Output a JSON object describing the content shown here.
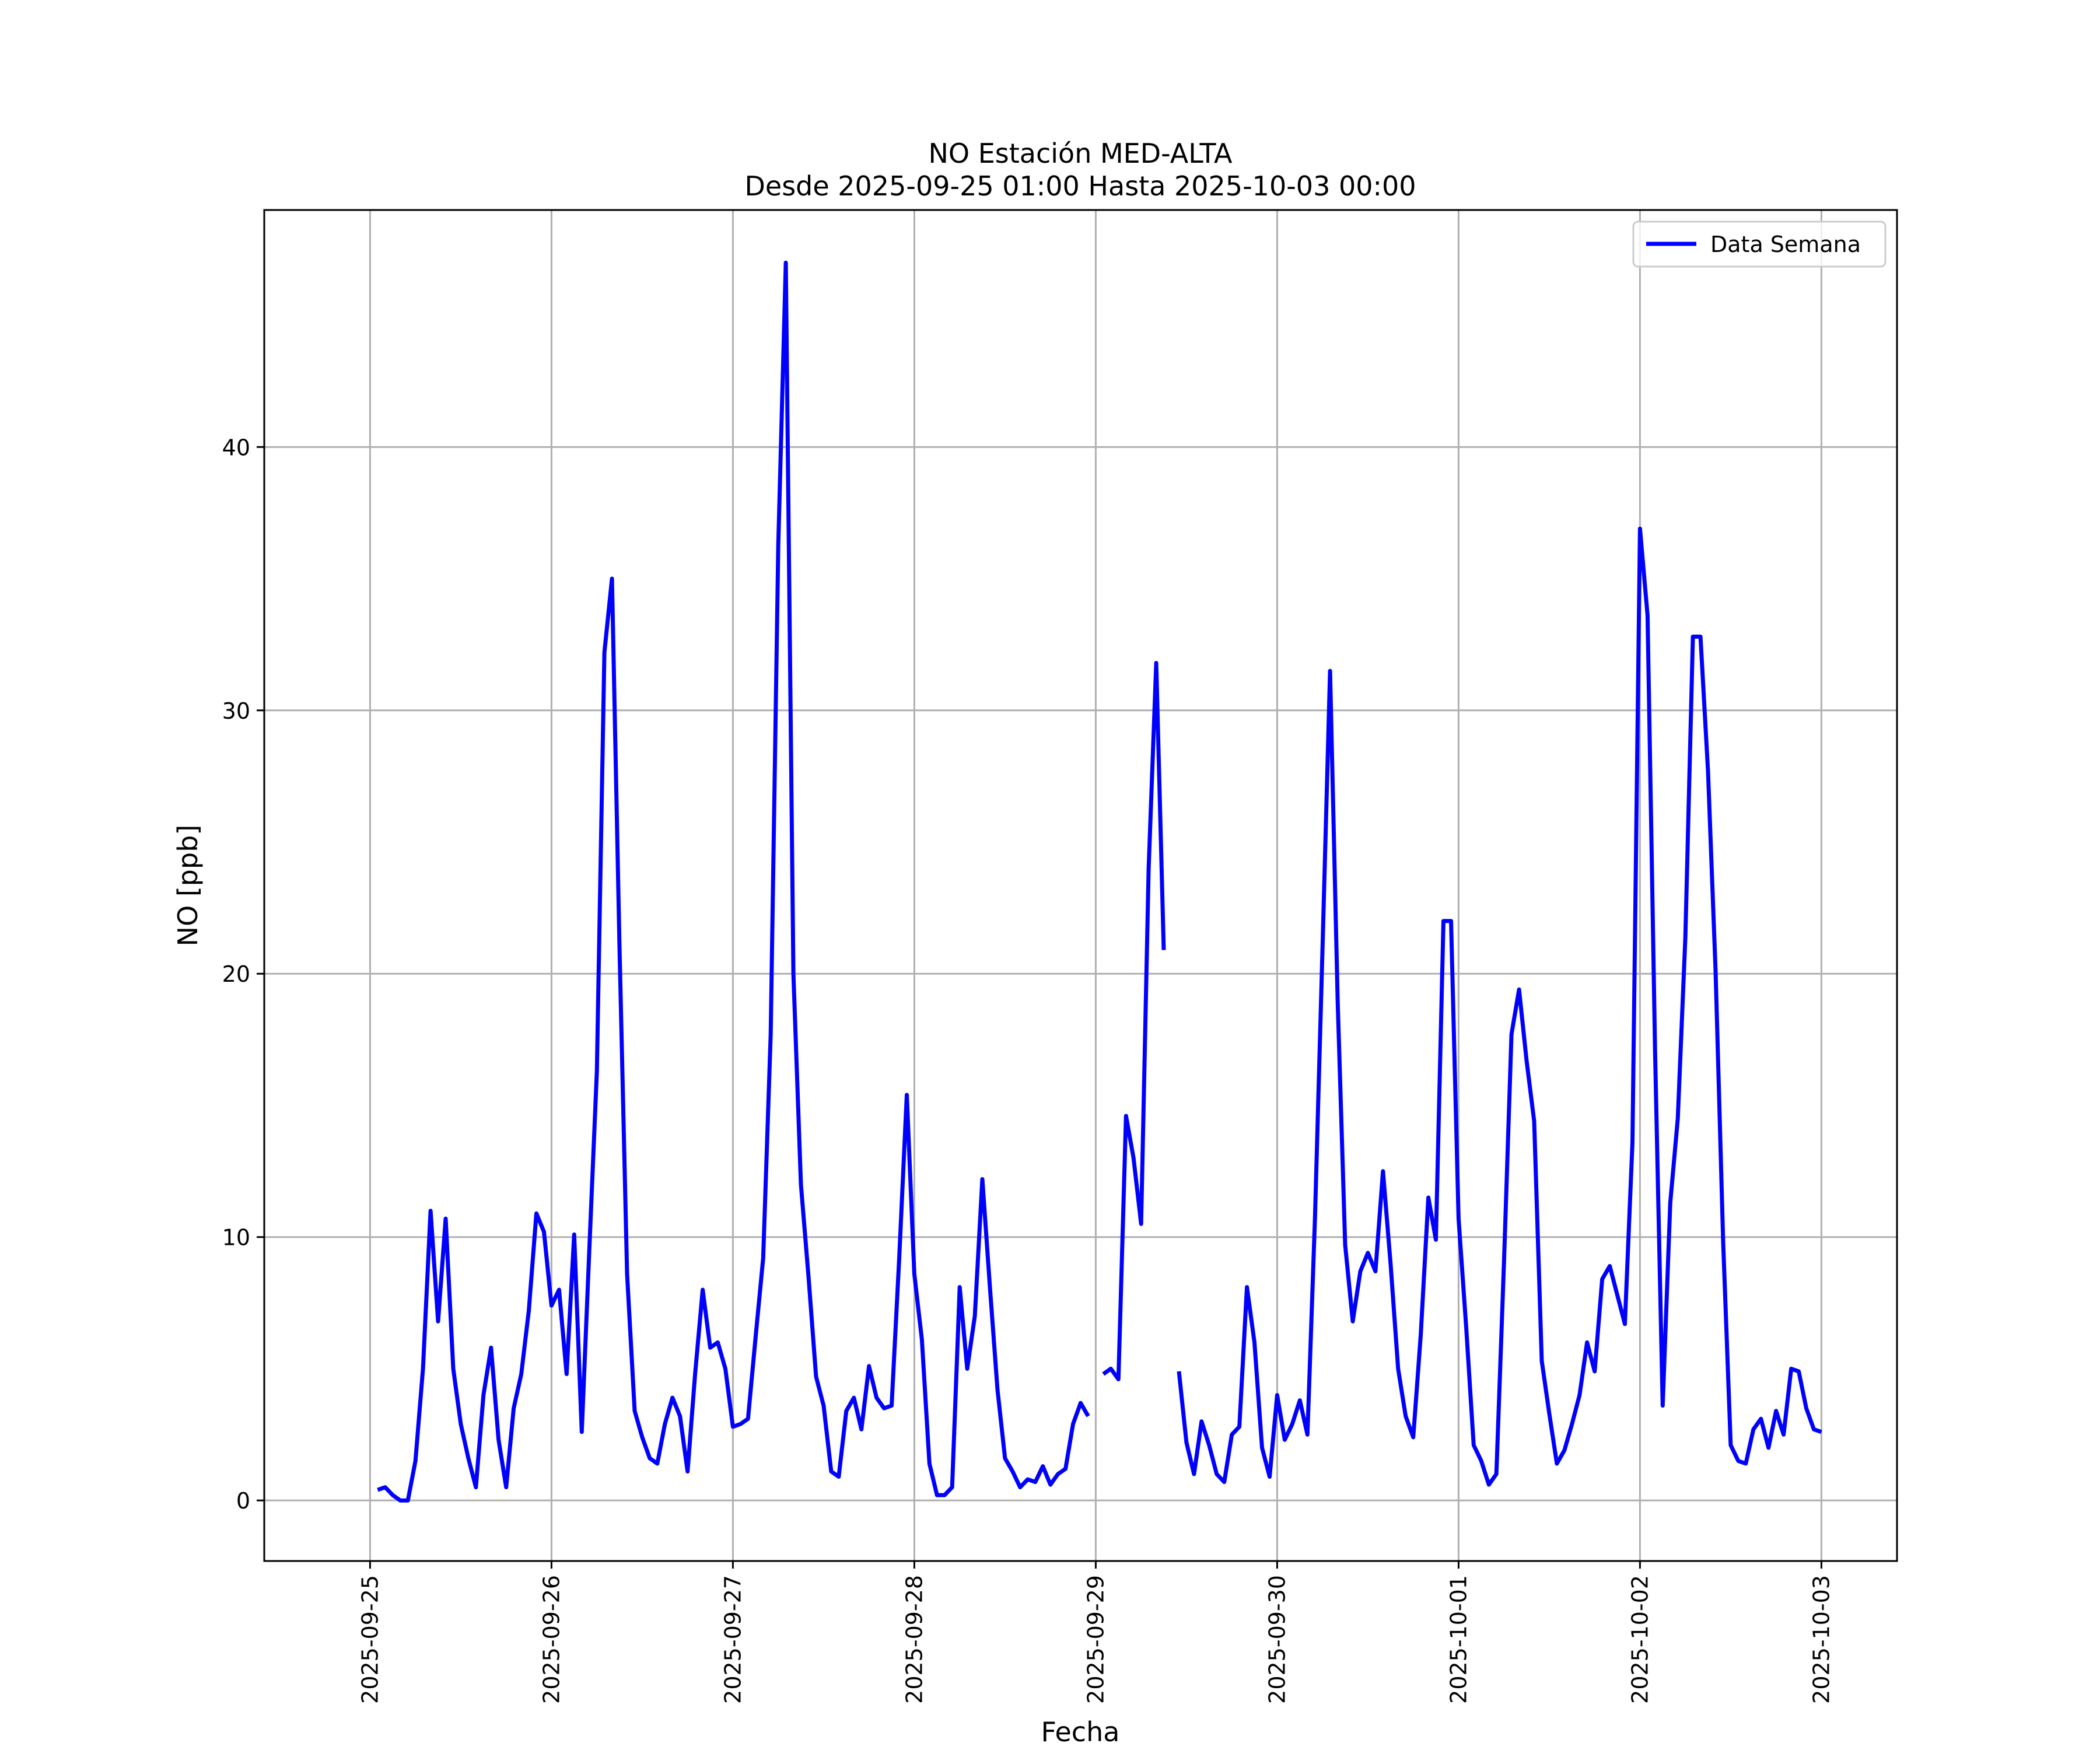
{
  "chart_data": {
    "type": "line",
    "title": "NO Estación MED-ALTA",
    "subtitle": "Desde 2025-09-25 01:00 Hasta 2025-10-03 00:00",
    "xlabel": "Fecha",
    "ylabel": "NO [ppb]",
    "xlim": [
      "2025-09-24T10:00",
      "2025-10-03T10:00"
    ],
    "ylim": [
      -2.3,
      49
    ],
    "yticks": [
      0,
      10,
      20,
      30,
      40
    ],
    "xticks": [
      "2025-09-25",
      "2025-09-26",
      "2025-09-27",
      "2025-09-28",
      "2025-09-29",
      "2025-09-30",
      "2025-10-01",
      "2025-10-02",
      "2025-10-03"
    ],
    "grid": true,
    "legend": "top-right",
    "color": "#0000ff",
    "series": [
      {
        "name": "Data Semana",
        "points": [
          [
            "2025-09-25T01:00",
            0.4
          ],
          [
            "2025-09-25T02:00",
            0.5
          ],
          [
            "2025-09-25T03:00",
            0.2
          ],
          [
            "2025-09-25T04:00",
            0.0
          ],
          [
            "2025-09-25T05:00",
            0.0
          ],
          [
            "2025-09-25T06:00",
            1.5
          ],
          [
            "2025-09-25T07:00",
            5.0
          ],
          [
            "2025-09-25T08:00",
            11.0
          ],
          [
            "2025-09-25T09:00",
            6.8
          ],
          [
            "2025-09-25T10:00",
            10.7
          ],
          [
            "2025-09-25T11:00",
            5.0
          ],
          [
            "2025-09-25T12:00",
            2.9
          ],
          [
            "2025-09-25T13:00",
            1.6
          ],
          [
            "2025-09-25T14:00",
            0.5
          ],
          [
            "2025-09-25T15:00",
            4.0
          ],
          [
            "2025-09-25T16:00",
            5.8
          ],
          [
            "2025-09-25T17:00",
            2.3
          ],
          [
            "2025-09-25T18:00",
            0.5
          ],
          [
            "2025-09-25T19:00",
            3.5
          ],
          [
            "2025-09-25T20:00",
            4.8
          ],
          [
            "2025-09-25T21:00",
            7.2
          ],
          [
            "2025-09-25T22:00",
            10.9
          ],
          [
            "2025-09-25T23:00",
            10.2
          ],
          [
            "2025-09-26T00:00",
            7.4
          ],
          [
            "2025-09-26T01:00",
            8.0
          ],
          [
            "2025-09-26T02:00",
            4.8
          ],
          [
            "2025-09-26T03:00",
            10.1
          ],
          [
            "2025-09-26T04:00",
            2.6
          ],
          [
            "2025-09-26T05:00",
            9.5
          ],
          [
            "2025-09-26T06:00",
            16.3
          ],
          [
            "2025-09-26T07:00",
            32.2
          ],
          [
            "2025-09-26T08:00",
            35.0
          ],
          [
            "2025-09-26T09:00",
            21.0
          ],
          [
            "2025-09-26T10:00",
            8.6
          ],
          [
            "2025-09-26T11:00",
            3.4
          ],
          [
            "2025-09-26T12:00",
            2.4
          ],
          [
            "2025-09-26T13:00",
            1.6
          ],
          [
            "2025-09-26T14:00",
            1.4
          ],
          [
            "2025-09-26T15:00",
            2.9
          ],
          [
            "2025-09-26T16:00",
            3.9
          ],
          [
            "2025-09-26T17:00",
            3.2
          ],
          [
            "2025-09-26T18:00",
            1.1
          ],
          [
            "2025-09-26T19:00",
            4.8
          ],
          [
            "2025-09-26T20:00",
            8.0
          ],
          [
            "2025-09-26T21:00",
            5.8
          ],
          [
            "2025-09-26T22:00",
            6.0
          ],
          [
            "2025-09-26T23:00",
            5.0
          ],
          [
            "2025-09-27T00:00",
            2.8
          ],
          [
            "2025-09-27T01:00",
            2.9
          ],
          [
            "2025-09-27T02:00",
            3.1
          ],
          [
            "2025-09-27T03:00",
            6.2
          ],
          [
            "2025-09-27T04:00",
            9.2
          ],
          [
            "2025-09-27T05:00",
            17.7
          ],
          [
            "2025-09-27T06:00",
            36.3
          ],
          [
            "2025-09-27T07:00",
            47.0
          ],
          [
            "2025-09-27T08:00",
            20.0
          ],
          [
            "2025-09-27T09:00",
            12.0
          ],
          [
            "2025-09-27T10:00",
            8.5
          ],
          [
            "2025-09-27T11:00",
            4.7
          ],
          [
            "2025-09-27T12:00",
            3.6
          ],
          [
            "2025-09-27T13:00",
            1.1
          ],
          [
            "2025-09-27T14:00",
            0.9
          ],
          [
            "2025-09-27T15:00",
            3.4
          ],
          [
            "2025-09-27T16:00",
            3.9
          ],
          [
            "2025-09-27T17:00",
            2.7
          ],
          [
            "2025-09-27T18:00",
            5.1
          ],
          [
            "2025-09-27T19:00",
            3.9
          ],
          [
            "2025-09-27T20:00",
            3.5
          ],
          [
            "2025-09-27T21:00",
            3.6
          ],
          [
            "2025-09-27T22:00",
            9.2
          ],
          [
            "2025-09-27T23:00",
            15.4
          ],
          [
            "2025-09-28T00:00",
            8.6
          ],
          [
            "2025-09-28T01:00",
            6.1
          ],
          [
            "2025-09-28T02:00",
            1.4
          ],
          [
            "2025-09-28T03:00",
            0.2
          ],
          [
            "2025-09-28T04:00",
            0.2
          ],
          [
            "2025-09-28T05:00",
            0.5
          ],
          [
            "2025-09-28T06:00",
            8.1
          ],
          [
            "2025-09-28T07:00",
            5.0
          ],
          [
            "2025-09-28T08:00",
            7.0
          ],
          [
            "2025-09-28T09:00",
            12.2
          ],
          [
            "2025-09-28T10:00",
            8.1
          ],
          [
            "2025-09-28T11:00",
            4.2
          ],
          [
            "2025-09-28T12:00",
            1.6
          ],
          [
            "2025-09-28T13:00",
            1.1
          ],
          [
            "2025-09-28T14:00",
            0.5
          ],
          [
            "2025-09-28T15:00",
            0.8
          ],
          [
            "2025-09-28T16:00",
            0.7
          ],
          [
            "2025-09-28T17:00",
            1.3
          ],
          [
            "2025-09-28T18:00",
            0.6
          ],
          [
            "2025-09-28T19:00",
            1.0
          ],
          [
            "2025-09-28T20:00",
            1.2
          ],
          [
            "2025-09-28T21:00",
            2.9
          ],
          [
            "2025-09-28T22:00",
            3.7
          ],
          [
            "2025-09-28T23:00",
            3.2
          ],
          [
            "2025-09-29T00:00",
            null
          ],
          [
            "2025-09-29T01:00",
            4.8
          ],
          [
            "2025-09-29T02:00",
            5.0
          ],
          [
            "2025-09-29T03:00",
            4.6
          ],
          [
            "2025-09-29T04:00",
            14.6
          ],
          [
            "2025-09-29T05:00",
            13.0
          ],
          [
            "2025-09-29T06:00",
            10.5
          ],
          [
            "2025-09-29T07:00",
            24.0
          ],
          [
            "2025-09-29T08:00",
            31.8
          ],
          [
            "2025-09-29T09:00",
            20.9
          ],
          [
            "2025-09-29T10:00",
            null
          ],
          [
            "2025-09-29T11:00",
            4.9
          ],
          [
            "2025-09-29T12:00",
            2.2
          ],
          [
            "2025-09-29T13:00",
            1.0
          ],
          [
            "2025-09-29T14:00",
            3.0
          ],
          [
            "2025-09-29T15:00",
            2.1
          ],
          [
            "2025-09-29T16:00",
            1.0
          ],
          [
            "2025-09-29T17:00",
            0.7
          ],
          [
            "2025-09-29T18:00",
            2.5
          ],
          [
            "2025-09-29T19:00",
            2.8
          ],
          [
            "2025-09-29T20:00",
            8.1
          ],
          [
            "2025-09-29T21:00",
            6.0
          ],
          [
            "2025-09-29T22:00",
            2.0
          ],
          [
            "2025-09-29T23:00",
            0.9
          ],
          [
            "2025-09-30T00:00",
            4.0
          ],
          [
            "2025-09-30T01:00",
            2.3
          ],
          [
            "2025-09-30T02:00",
            2.9
          ],
          [
            "2025-09-30T03:00",
            3.8
          ],
          [
            "2025-09-30T04:00",
            2.5
          ],
          [
            "2025-09-30T05:00",
            10.7
          ],
          [
            "2025-09-30T06:00",
            21.0
          ],
          [
            "2025-09-30T07:00",
            31.5
          ],
          [
            "2025-09-30T08:00",
            19.0
          ],
          [
            "2025-09-30T09:00",
            9.7
          ],
          [
            "2025-09-30T10:00",
            6.8
          ],
          [
            "2025-09-30T11:00",
            8.7
          ],
          [
            "2025-09-30T12:00",
            9.4
          ],
          [
            "2025-09-30T13:00",
            8.7
          ],
          [
            "2025-09-30T14:00",
            12.5
          ],
          [
            "2025-09-30T15:00",
            9.0
          ],
          [
            "2025-09-30T16:00",
            5.0
          ],
          [
            "2025-09-30T17:00",
            3.2
          ],
          [
            "2025-09-30T18:00",
            2.4
          ],
          [
            "2025-09-30T19:00",
            6.3
          ],
          [
            "2025-09-30T20:00",
            11.5
          ],
          [
            "2025-09-30T21:00",
            9.9
          ],
          [
            "2025-09-30T22:00",
            22.0
          ],
          [
            "2025-09-30T23:00",
            22.0
          ],
          [
            "2025-10-01T00:00",
            10.7
          ],
          [
            "2025-10-01T01:00",
            6.6
          ],
          [
            "2025-10-01T02:00",
            2.1
          ],
          [
            "2025-10-01T03:00",
            1.5
          ],
          [
            "2025-10-01T04:00",
            0.6
          ],
          [
            "2025-10-01T05:00",
            1.0
          ],
          [
            "2025-10-01T06:00",
            9.0
          ],
          [
            "2025-10-01T07:00",
            17.7
          ],
          [
            "2025-10-01T08:00",
            19.4
          ],
          [
            "2025-10-01T09:00",
            16.7
          ],
          [
            "2025-10-01T10:00",
            14.4
          ],
          [
            "2025-10-01T11:00",
            5.3
          ],
          [
            "2025-10-01T12:00",
            3.3
          ],
          [
            "2025-10-01T13:00",
            1.4
          ],
          [
            "2025-10-01T14:00",
            1.9
          ],
          [
            "2025-10-01T15:00",
            2.9
          ],
          [
            "2025-10-01T16:00",
            4.0
          ],
          [
            "2025-10-01T17:00",
            6.0
          ],
          [
            "2025-10-01T18:00",
            4.9
          ],
          [
            "2025-10-01T19:00",
            8.4
          ],
          [
            "2025-10-01T20:00",
            8.9
          ],
          [
            "2025-10-01T21:00",
            7.8
          ],
          [
            "2025-10-01T22:00",
            6.7
          ],
          [
            "2025-10-01T23:00",
            13.6
          ],
          [
            "2025-10-02T00:00",
            36.9
          ],
          [
            "2025-10-02T01:00",
            33.6
          ],
          [
            "2025-10-02T02:00",
            17.0
          ],
          [
            "2025-10-02T03:00",
            3.6
          ],
          [
            "2025-10-02T04:00",
            11.3
          ],
          [
            "2025-10-02T05:00",
            14.5
          ],
          [
            "2025-10-02T06:00",
            21.4
          ],
          [
            "2025-10-02T07:00",
            32.8
          ],
          [
            "2025-10-02T08:00",
            32.8
          ],
          [
            "2025-10-02T09:00",
            27.7
          ],
          [
            "2025-10-02T10:00",
            20.1
          ],
          [
            "2025-10-02T11:00",
            9.8
          ],
          [
            "2025-10-02T12:00",
            2.1
          ],
          [
            "2025-10-02T13:00",
            1.5
          ],
          [
            "2025-10-02T14:00",
            1.4
          ],
          [
            "2025-10-02T15:00",
            2.7
          ],
          [
            "2025-10-02T16:00",
            3.1
          ],
          [
            "2025-10-02T17:00",
            2.0
          ],
          [
            "2025-10-02T18:00",
            3.4
          ],
          [
            "2025-10-02T19:00",
            2.5
          ],
          [
            "2025-10-02T20:00",
            5.0
          ],
          [
            "2025-10-02T21:00",
            4.9
          ],
          [
            "2025-10-02T22:00",
            3.5
          ],
          [
            "2025-10-02T23:00",
            2.7
          ],
          [
            "2025-10-03T00:00",
            2.6
          ]
        ]
      }
    ]
  }
}
